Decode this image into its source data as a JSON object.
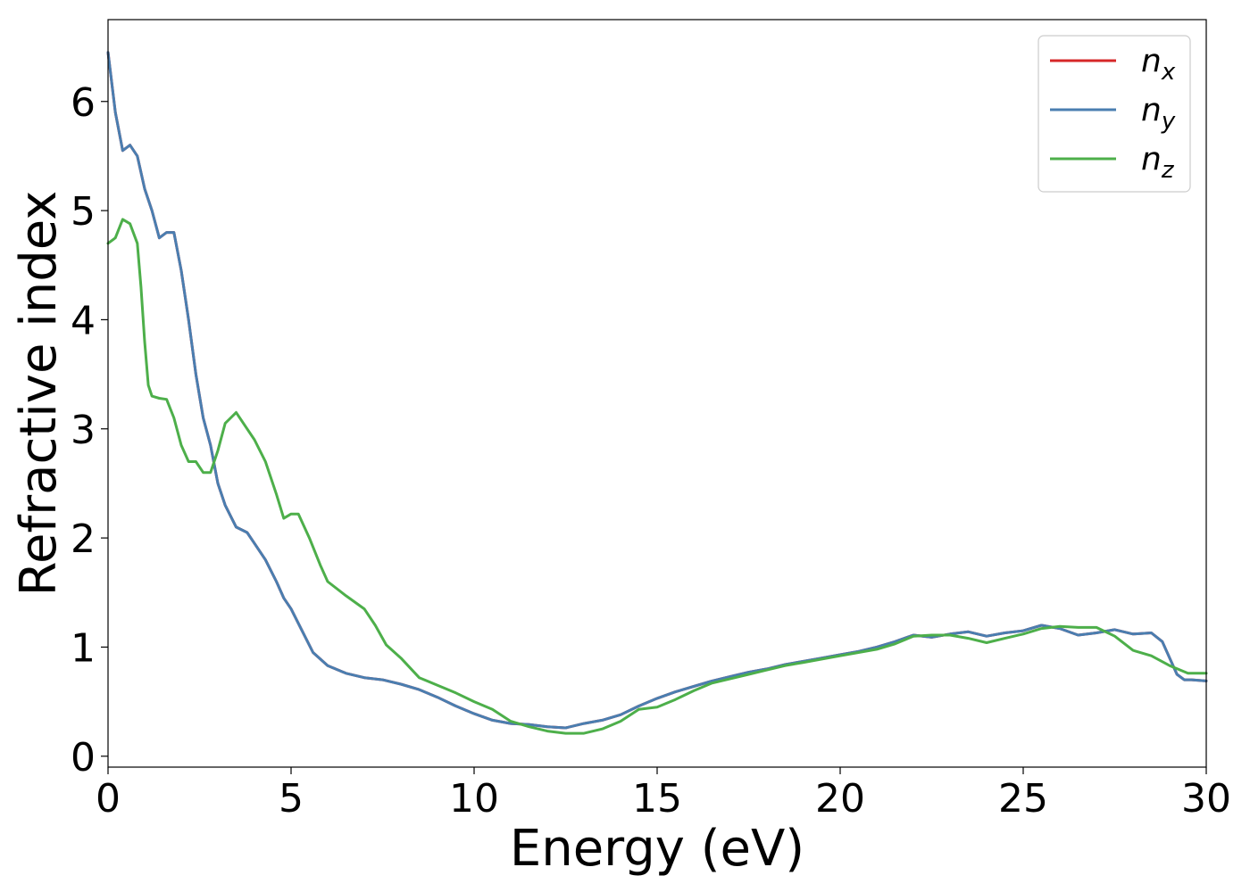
{
  "chart_data": {
    "type": "line",
    "title": "",
    "xlabel": "Energy (eV)",
    "ylabel": "Refractive index",
    "xlim": [
      0,
      30
    ],
    "ylim": [
      -0.1,
      6.75
    ],
    "xticks": [
      0,
      5,
      10,
      15,
      20,
      25,
      30
    ],
    "xtick_labels": [
      "0",
      "5",
      "10",
      "15",
      "20",
      "25",
      "30"
    ],
    "yticks": [
      0,
      1,
      2,
      3,
      4,
      5,
      6
    ],
    "ytick_labels": [
      "0",
      "1",
      "2",
      "3",
      "4",
      "5",
      "6"
    ],
    "grid": false,
    "legend_position": "top-right",
    "series": [
      {
        "name": "n_x",
        "label_main": "n",
        "label_sub": "x",
        "color": "#d62728",
        "x": [
          0,
          0.2,
          0.4,
          0.6,
          0.8,
          1.0,
          1.2,
          1.4,
          1.6,
          1.8,
          2.0,
          2.2,
          2.4,
          2.6,
          2.8,
          3.0,
          3.2,
          3.5,
          3.8,
          4.0,
          4.3,
          4.6,
          4.8,
          5.0,
          5.3,
          5.6,
          6.0,
          6.5,
          7.0,
          7.5,
          8.0,
          8.5,
          9.0,
          9.5,
          10.0,
          10.5,
          11.0,
          11.5,
          12.0,
          12.5,
          13.0,
          13.5,
          14.0,
          14.5,
          15.0,
          15.5,
          16.0,
          16.5,
          17.0,
          17.5,
          18.0,
          18.5,
          19.0,
          19.5,
          20.0,
          20.5,
          21.0,
          21.5,
          22.0,
          22.5,
          23.0,
          23.5,
          24.0,
          24.5,
          25.0,
          25.5,
          26.0,
          26.5,
          27.0,
          27.5,
          28.0,
          28.5,
          28.8,
          29.0,
          29.2,
          29.4,
          29.6,
          30.0
        ],
        "y": [
          6.45,
          5.9,
          5.55,
          5.6,
          5.5,
          5.2,
          5.0,
          4.75,
          4.8,
          4.8,
          4.45,
          4.0,
          3.5,
          3.1,
          2.85,
          2.5,
          2.3,
          2.1,
          2.05,
          1.95,
          1.8,
          1.6,
          1.45,
          1.35,
          1.15,
          0.95,
          0.83,
          0.76,
          0.72,
          0.7,
          0.66,
          0.61,
          0.54,
          0.46,
          0.39,
          0.33,
          0.3,
          0.29,
          0.27,
          0.26,
          0.3,
          0.33,
          0.38,
          0.46,
          0.53,
          0.59,
          0.64,
          0.69,
          0.73,
          0.77,
          0.8,
          0.84,
          0.87,
          0.9,
          0.93,
          0.96,
          1.0,
          1.05,
          1.11,
          1.09,
          1.12,
          1.14,
          1.1,
          1.13,
          1.15,
          1.2,
          1.17,
          1.11,
          1.13,
          1.16,
          1.12,
          1.13,
          1.05,
          0.9,
          0.75,
          0.7,
          0.7,
          0.69
        ]
      },
      {
        "name": "n_y",
        "label_main": "n",
        "label_sub": "y",
        "color": "#4a7eb0",
        "x": [
          0,
          0.2,
          0.4,
          0.6,
          0.8,
          1.0,
          1.2,
          1.4,
          1.6,
          1.8,
          2.0,
          2.2,
          2.4,
          2.6,
          2.8,
          3.0,
          3.2,
          3.5,
          3.8,
          4.0,
          4.3,
          4.6,
          4.8,
          5.0,
          5.3,
          5.6,
          6.0,
          6.5,
          7.0,
          7.5,
          8.0,
          8.5,
          9.0,
          9.5,
          10.0,
          10.5,
          11.0,
          11.5,
          12.0,
          12.5,
          13.0,
          13.5,
          14.0,
          14.5,
          15.0,
          15.5,
          16.0,
          16.5,
          17.0,
          17.5,
          18.0,
          18.5,
          19.0,
          19.5,
          20.0,
          20.5,
          21.0,
          21.5,
          22.0,
          22.5,
          23.0,
          23.5,
          24.0,
          24.5,
          25.0,
          25.5,
          26.0,
          26.5,
          27.0,
          27.5,
          28.0,
          28.5,
          28.8,
          29.0,
          29.2,
          29.4,
          29.6,
          30.0
        ],
        "y": [
          6.45,
          5.9,
          5.55,
          5.6,
          5.5,
          5.2,
          5.0,
          4.75,
          4.8,
          4.8,
          4.45,
          4.0,
          3.5,
          3.1,
          2.85,
          2.5,
          2.3,
          2.1,
          2.05,
          1.95,
          1.8,
          1.6,
          1.45,
          1.35,
          1.15,
          0.95,
          0.83,
          0.76,
          0.72,
          0.7,
          0.66,
          0.61,
          0.54,
          0.46,
          0.39,
          0.33,
          0.3,
          0.29,
          0.27,
          0.26,
          0.3,
          0.33,
          0.38,
          0.46,
          0.53,
          0.59,
          0.64,
          0.69,
          0.73,
          0.77,
          0.8,
          0.84,
          0.87,
          0.9,
          0.93,
          0.96,
          1.0,
          1.05,
          1.11,
          1.09,
          1.12,
          1.14,
          1.1,
          1.13,
          1.15,
          1.2,
          1.17,
          1.11,
          1.13,
          1.16,
          1.12,
          1.13,
          1.05,
          0.9,
          0.75,
          0.7,
          0.7,
          0.69
        ]
      },
      {
        "name": "n_z",
        "label_main": "n",
        "label_sub": "z",
        "color": "#4daf4a",
        "x": [
          0,
          0.2,
          0.4,
          0.6,
          0.8,
          0.9,
          1.0,
          1.1,
          1.2,
          1.4,
          1.6,
          1.8,
          2.0,
          2.2,
          2.4,
          2.6,
          2.8,
          3.0,
          3.2,
          3.5,
          3.8,
          4.0,
          4.3,
          4.6,
          4.8,
          5.0,
          5.2,
          5.5,
          5.8,
          6.0,
          6.5,
          7.0,
          7.3,
          7.6,
          8.0,
          8.5,
          9.0,
          9.5,
          10.0,
          10.5,
          11.0,
          11.5,
          12.0,
          12.5,
          13.0,
          13.5,
          14.0,
          14.5,
          15.0,
          15.5,
          16.0,
          16.5,
          17.0,
          17.5,
          18.0,
          18.5,
          19.0,
          19.5,
          20.0,
          20.5,
          21.0,
          21.5,
          22.0,
          22.5,
          23.0,
          23.5,
          24.0,
          24.5,
          25.0,
          25.5,
          26.0,
          26.5,
          27.0,
          27.5,
          28.0,
          28.5,
          29.0,
          29.5,
          30.0
        ],
        "y": [
          4.7,
          4.75,
          4.92,
          4.88,
          4.7,
          4.3,
          3.8,
          3.4,
          3.3,
          3.28,
          3.27,
          3.1,
          2.85,
          2.7,
          2.7,
          2.6,
          2.6,
          2.8,
          3.05,
          3.15,
          3.0,
          2.9,
          2.7,
          2.4,
          2.18,
          2.22,
          2.22,
          2.0,
          1.75,
          1.6,
          1.47,
          1.35,
          1.2,
          1.02,
          0.9,
          0.72,
          0.65,
          0.58,
          0.5,
          0.43,
          0.32,
          0.27,
          0.23,
          0.21,
          0.21,
          0.25,
          0.32,
          0.43,
          0.45,
          0.52,
          0.6,
          0.67,
          0.71,
          0.75,
          0.79,
          0.83,
          0.86,
          0.89,
          0.92,
          0.95,
          0.98,
          1.03,
          1.1,
          1.11,
          1.11,
          1.08,
          1.04,
          1.08,
          1.12,
          1.17,
          1.19,
          1.18,
          1.18,
          1.1,
          0.97,
          0.92,
          0.83,
          0.76,
          0.76
        ]
      }
    ]
  }
}
